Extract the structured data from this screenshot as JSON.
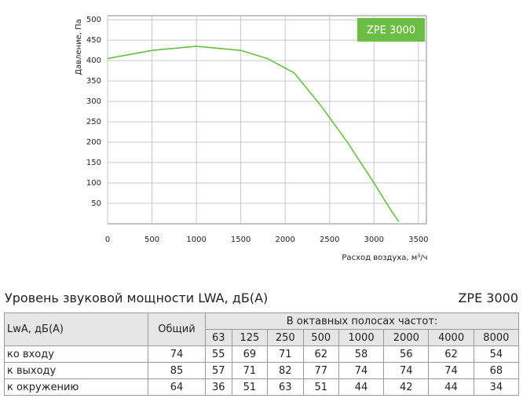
{
  "chart_data": {
    "type": "line",
    "y_label": "Давление, Па",
    "x_label": "Расход воздуха, м³/ч",
    "legend": "ZPE 3000",
    "legend_position": "upper right",
    "x": [
      0,
      500,
      1000,
      1500,
      1800,
      2100,
      2400,
      2700,
      3000,
      3200,
      3280
    ],
    "series": [
      {
        "name": "ZPE 3000",
        "color": "#6cbd45",
        "values": [
          405,
          425,
          435,
          425,
          405,
          370,
          290,
          200,
          100,
          30,
          5
        ]
      }
    ],
    "xlim": [
      0,
      3590
    ],
    "ylim": [
      0,
      510
    ],
    "xticks": [
      0,
      500,
      1000,
      1500,
      2000,
      2500,
      3000,
      3500
    ],
    "yticks": [
      50,
      100,
      150,
      200,
      250,
      300,
      350,
      400,
      450,
      500
    ],
    "grid": true
  },
  "table": {
    "title": "Уровень звуковой мощности LWA, дБ(A)",
    "model": "ZPE 3000",
    "header": {
      "label": "LwA, дБ(A)",
      "total": "Общий",
      "bands_title": "В октавных полосах частот:",
      "bands": [
        "63",
        "125",
        "250",
        "500",
        "1000",
        "2000",
        "4000",
        "8000"
      ]
    },
    "rows": [
      [
        "ко входу",
        "74",
        "55",
        "69",
        "71",
        "62",
        "58",
        "56",
        "62",
        "54"
      ],
      [
        "к выходу",
        "85",
        "57",
        "71",
        "82",
        "77",
        "74",
        "74",
        "74",
        "68"
      ],
      [
        "к окружению",
        "64",
        "36",
        "51",
        "63",
        "51",
        "44",
        "42",
        "44",
        "34"
      ]
    ]
  }
}
